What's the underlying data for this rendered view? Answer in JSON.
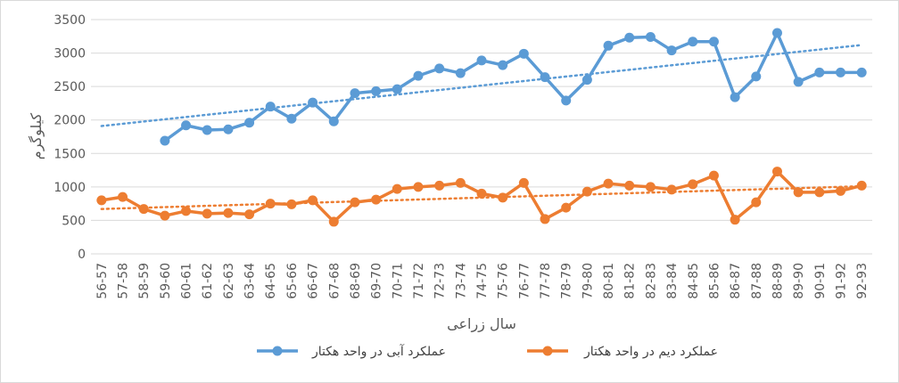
{
  "chart_data": {
    "type": "line",
    "xlabel": "سال زراعی",
    "ylabel": "کیلوگرم",
    "ylim": [
      0,
      3500
    ],
    "yticks": [
      0,
      500,
      1000,
      1500,
      2000,
      2500,
      3000,
      3500
    ],
    "grid": "horizontal",
    "legend_position": "bottom",
    "categories": [
      "56-57",
      "57-58",
      "58-59",
      "59-60",
      "60-61",
      "61-62",
      "62-63",
      "63-64",
      "64-65",
      "65-66",
      "66-67",
      "67-68",
      "68-69",
      "69-70",
      "70-71",
      "71-72",
      "72-73",
      "73-74",
      "74-75",
      "75-76",
      "76-77",
      "77-78",
      "78-79",
      "79-80",
      "80-81",
      "81-82",
      "82-83",
      "83-84",
      "84-85",
      "85-86",
      "86-87",
      "87-88",
      "88-89",
      "89-90",
      "90-91",
      "91-92",
      "92-93"
    ],
    "series": [
      {
        "name": "عملکرد آبی در واحد هکتار",
        "color": "#5b9bd5",
        "values": [
          null,
          null,
          null,
          1690,
          1920,
          1850,
          1860,
          1960,
          2200,
          2020,
          2260,
          1980,
          2400,
          2430,
          2460,
          2660,
          2770,
          2700,
          2890,
          2820,
          2990,
          2640,
          2290,
          2600,
          3110,
          3230,
          3240,
          3040,
          3170,
          3170,
          2340,
          2650,
          3300,
          2570,
          2710,
          2710,
          2710
        ],
        "trendline": [
          1910,
          3120
        ]
      },
      {
        "name": "عملکرد دیم در واحد هکتار",
        "color": "#ed7d31",
        "values": [
          800,
          850,
          670,
          570,
          640,
          600,
          610,
          590,
          750,
          740,
          800,
          480,
          770,
          810,
          970,
          1000,
          1020,
          1060,
          900,
          840,
          1060,
          520,
          690,
          930,
          1050,
          1020,
          1000,
          960,
          1040,
          1170,
          510,
          770,
          1230,
          920,
          920,
          940,
          1020
        ],
        "trendline": [
          670,
          1010
        ]
      }
    ]
  }
}
